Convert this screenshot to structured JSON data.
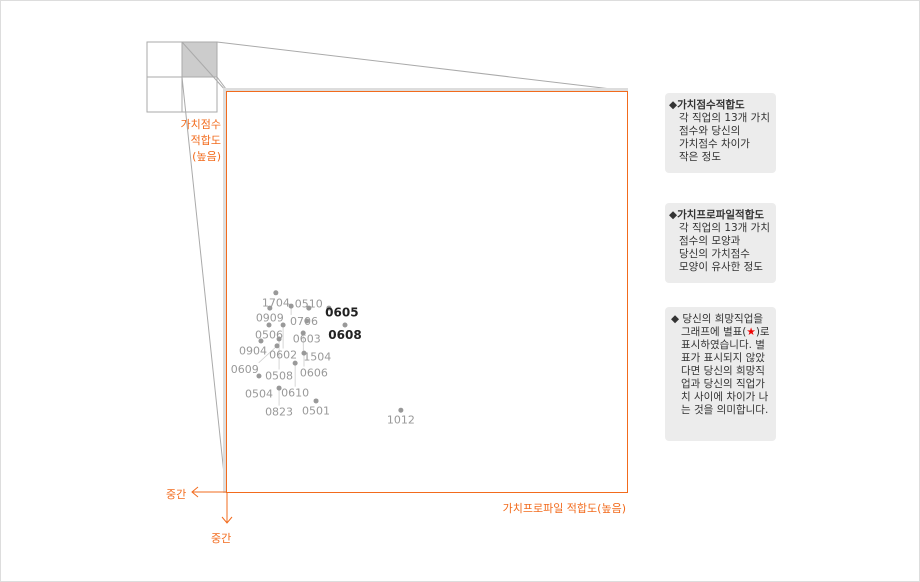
{
  "chart_data": {
    "type": "scatter",
    "xlabel": "가치프로파일 적합도(높음)",
    "ylabel": [
      "가치점수",
      "적합도",
      "(높음)"
    ],
    "x_origin_label": "중간",
    "y_origin_label": "중간",
    "xlim": [
      0,
      100
    ],
    "ylim": [
      0,
      100
    ],
    "grid": false,
    "point_color": "#999999",
    "highlight_color": "#222222",
    "frame_color": "#f26b1d",
    "points": [
      {
        "label": "1704",
        "x": 12.4,
        "y": 49.8
      },
      {
        "label": "0909",
        "x": 10.9,
        "y": 46.0
      },
      {
        "label": "0706",
        "x": 16.2,
        "y": 46.5
      },
      {
        "label": "0510",
        "x": 20.6,
        "y": 46.0
      },
      {
        "label": "0603",
        "x": 20.1,
        "y": 42.8
      },
      {
        "label": "0605",
        "x": 25.6,
        "y": 46.0,
        "highlight": true
      },
      {
        "label": "0608",
        "x": 29.6,
        "y": 41.8,
        "highlight": true
      },
      {
        "label": "0506",
        "x": 10.7,
        "y": 41.8
      },
      {
        "label": "0602",
        "x": 14.2,
        "y": 41.8
      },
      {
        "label": "1504",
        "x": 19.2,
        "y": 39.8
      },
      {
        "label": "0904",
        "x": 8.7,
        "y": 37.8
      },
      {
        "label": "0508",
        "x": 13.2,
        "y": 38.3
      },
      {
        "label": "0609",
        "x": 12.7,
        "y": 36.6
      },
      {
        "label": "0606",
        "x": 19.4,
        "y": 34.8
      },
      {
        "label": "0610",
        "x": 17.2,
        "y": 32.3
      },
      {
        "label": "0504",
        "x": 8.2,
        "y": 29.1
      },
      {
        "label": "0823",
        "x": 13.2,
        "y": 26.1
      },
      {
        "label": "0501",
        "x": 22.4,
        "y": 22.9
      },
      {
        "label": "1012",
        "x": 43.5,
        "y": 20.6
      }
    ]
  },
  "legend": {
    "box1": {
      "title": "◆가치점수적합도",
      "desc": "각 직업의 13개 가치\n점수와 당신의\n가치점수 차이가\n작은 정도"
    },
    "box2": {
      "title": "◆가치프로파일적합도",
      "desc": "각 직업의 13개 가치\n점수의 모양과\n당신의 가치점수\n모양이 유사한 정도"
    },
    "box3": {
      "pre": "◆ 당신의 희망직업을 그래프에 별표(",
      "star": "★",
      "post": ")로 표시하였습니다. 별표가 표시되지 않았다면 당신의 희망직업과 당신의 직업가치 사이에 차이가 나는 것을 의미합니다."
    }
  }
}
